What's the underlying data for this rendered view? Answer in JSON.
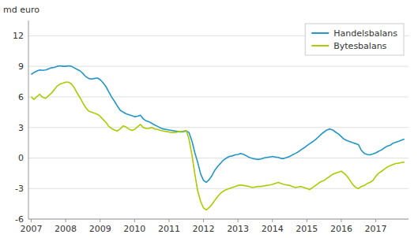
{
  "chart_data": {
    "type": "line",
    "ylabel": "md euro",
    "x": [
      2007.0,
      2007.08,
      2007.17,
      2007.25,
      2007.33,
      2007.42,
      2007.5,
      2007.58,
      2007.67,
      2007.75,
      2007.83,
      2007.92,
      2008.0,
      2008.08,
      2008.17,
      2008.25,
      2008.33,
      2008.42,
      2008.5,
      2008.58,
      2008.67,
      2008.75,
      2008.83,
      2008.92,
      2009.0,
      2009.08,
      2009.17,
      2009.25,
      2009.33,
      2009.42,
      2009.5,
      2009.58,
      2009.67,
      2009.75,
      2009.83,
      2009.92,
      2010.0,
      2010.08,
      2010.17,
      2010.25,
      2010.33,
      2010.42,
      2010.5,
      2010.58,
      2010.67,
      2010.75,
      2010.83,
      2010.92,
      2011.0,
      2011.08,
      2011.17,
      2011.25,
      2011.33,
      2011.42,
      2011.5,
      2011.58,
      2011.67,
      2011.75,
      2011.83,
      2011.92,
      2012.0,
      2012.08,
      2012.17,
      2012.25,
      2012.33,
      2012.42,
      2012.5,
      2012.58,
      2012.67,
      2012.75,
      2012.83,
      2012.92,
      2013.0,
      2013.08,
      2013.17,
      2013.25,
      2013.33,
      2013.42,
      2013.5,
      2013.58,
      2013.67,
      2013.75,
      2013.83,
      2013.92,
      2014.0,
      2014.08,
      2014.17,
      2014.25,
      2014.33,
      2014.42,
      2014.5,
      2014.58,
      2014.67,
      2014.75,
      2014.83,
      2014.92,
      2015.0,
      2015.08,
      2015.17,
      2015.25,
      2015.33,
      2015.42,
      2015.5,
      2015.58,
      2015.67,
      2015.75,
      2015.83,
      2015.92,
      2016.0,
      2016.08,
      2016.17,
      2016.25,
      2016.33,
      2016.42,
      2016.5,
      2016.58,
      2016.67,
      2016.75,
      2016.83,
      2016.92,
      2017.0,
      2017.08,
      2017.17,
      2017.25,
      2017.33,
      2017.42,
      2017.5,
      2017.58,
      2017.67,
      2017.75,
      2017.83
    ],
    "series": [
      {
        "name": "Handelsbalans",
        "color": "#2196c8",
        "values": [
          8.2,
          8.4,
          8.55,
          8.65,
          8.6,
          8.65,
          8.75,
          8.85,
          8.9,
          9.0,
          9.05,
          9.0,
          9.0,
          9.05,
          9.0,
          8.85,
          8.7,
          8.55,
          8.3,
          8.0,
          7.8,
          7.75,
          7.8,
          7.85,
          7.7,
          7.4,
          7.0,
          6.5,
          6.0,
          5.55,
          5.1,
          4.7,
          4.5,
          4.35,
          4.25,
          4.15,
          4.05,
          4.1,
          4.2,
          3.85,
          3.65,
          3.55,
          3.4,
          3.25,
          3.1,
          2.95,
          2.85,
          2.8,
          2.75,
          2.7,
          2.65,
          2.6,
          2.55,
          2.6,
          2.65,
          2.5,
          1.6,
          0.5,
          -0.4,
          -1.6,
          -2.2,
          -2.4,
          -2.1,
          -1.7,
          -1.2,
          -0.8,
          -0.5,
          -0.2,
          0.0,
          0.15,
          0.2,
          0.3,
          0.35,
          0.45,
          0.35,
          0.2,
          0.05,
          -0.05,
          -0.1,
          -0.15,
          -0.1,
          0.0,
          0.05,
          0.1,
          0.15,
          0.1,
          0.05,
          -0.05,
          -0.05,
          0.05,
          0.15,
          0.3,
          0.45,
          0.6,
          0.8,
          1.0,
          1.2,
          1.4,
          1.6,
          1.8,
          2.05,
          2.35,
          2.55,
          2.75,
          2.85,
          2.75,
          2.55,
          2.35,
          2.1,
          1.85,
          1.7,
          1.6,
          1.5,
          1.4,
          1.3,
          0.75,
          0.45,
          0.35,
          0.3,
          0.4,
          0.5,
          0.65,
          0.8,
          1.0,
          1.15,
          1.25,
          1.45,
          1.55,
          1.65,
          1.75,
          1.85
        ]
      },
      {
        "name": "Bytesbalans",
        "color": "#aacc00",
        "values": [
          6.0,
          5.75,
          6.05,
          6.25,
          5.95,
          5.85,
          6.1,
          6.35,
          6.7,
          7.05,
          7.25,
          7.35,
          7.45,
          7.45,
          7.25,
          6.9,
          6.4,
          5.9,
          5.4,
          4.95,
          4.6,
          4.5,
          4.4,
          4.3,
          4.1,
          3.8,
          3.5,
          3.1,
          2.9,
          2.75,
          2.65,
          2.85,
          3.15,
          3.05,
          2.85,
          2.7,
          2.8,
          3.05,
          3.3,
          3.0,
          2.9,
          2.9,
          3.0,
          2.85,
          2.8,
          2.7,
          2.65,
          2.6,
          2.55,
          2.5,
          2.5,
          2.55,
          2.6,
          2.65,
          2.7,
          1.85,
          0.2,
          -1.6,
          -3.2,
          -4.3,
          -4.9,
          -5.1,
          -4.85,
          -4.55,
          -4.15,
          -3.75,
          -3.45,
          -3.25,
          -3.1,
          -3.0,
          -2.9,
          -2.8,
          -2.7,
          -2.65,
          -2.7,
          -2.75,
          -2.8,
          -2.9,
          -2.85,
          -2.8,
          -2.8,
          -2.75,
          -2.7,
          -2.65,
          -2.6,
          -2.5,
          -2.4,
          -2.5,
          -2.6,
          -2.65,
          -2.7,
          -2.8,
          -2.9,
          -2.85,
          -2.8,
          -2.9,
          -3.0,
          -3.1,
          -2.9,
          -2.7,
          -2.5,
          -2.3,
          -2.2,
          -2.0,
          -1.8,
          -1.6,
          -1.5,
          -1.4,
          -1.3,
          -1.5,
          -1.8,
          -2.2,
          -2.6,
          -2.9,
          -3.0,
          -2.8,
          -2.7,
          -2.5,
          -2.4,
          -2.2,
          -1.8,
          -1.5,
          -1.3,
          -1.1,
          -0.9,
          -0.75,
          -0.65,
          -0.55,
          -0.5,
          -0.45,
          -0.4
        ]
      }
    ],
    "xlim": [
      2006.92,
      2017.95
    ],
    "xticks": [
      2007,
      2008,
      2009,
      2010,
      2011,
      2012,
      2013,
      2014,
      2015,
      2016,
      2017
    ],
    "ylim": [
      -6,
      13.5
    ],
    "yticks": [
      -6,
      -3,
      0,
      3,
      6,
      9,
      12
    ],
    "grid": true,
    "legend": "upper right"
  }
}
